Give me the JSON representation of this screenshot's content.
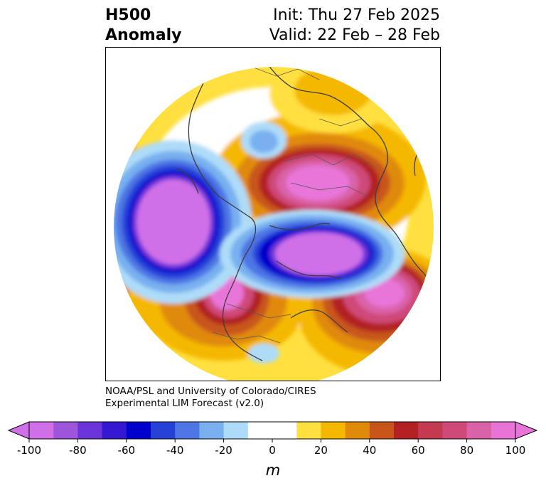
{
  "title": {
    "line1": "H500",
    "line2": "Anomaly",
    "init": "Init: Thu 27 Feb 2025",
    "valid": "Valid: 22 Feb – 28 Feb"
  },
  "credit": {
    "line1": "NOAA/PSL and University of Colorado/CIRES",
    "line2": "Experimental LIM Forecast (v2.0)"
  },
  "colorbar": {
    "unit": "m",
    "ticks": [
      -100,
      -80,
      -60,
      -40,
      -20,
      0,
      20,
      40,
      60,
      80,
      100
    ],
    "levels": [
      -100,
      -90,
      -80,
      -70,
      -60,
      -50,
      -40,
      -30,
      -20,
      -10,
      10,
      20,
      30,
      40,
      50,
      60,
      70,
      80,
      90,
      100
    ],
    "colors": [
      "#d070e8",
      "#9d55dc",
      "#6a34d8",
      "#3618d0",
      "#0000cc",
      "#2641d8",
      "#4e76e4",
      "#78b0f0",
      "#aedcf8",
      "#ffffff",
      "#ffe040",
      "#f5b800",
      "#e08a0a",
      "#c8561a",
      "#b22222",
      "#c43a50",
      "#cf4a78",
      "#d962a8",
      "#e874d8"
    ],
    "under_color": "#d070e8",
    "over_color": "#e874d8"
  }
}
